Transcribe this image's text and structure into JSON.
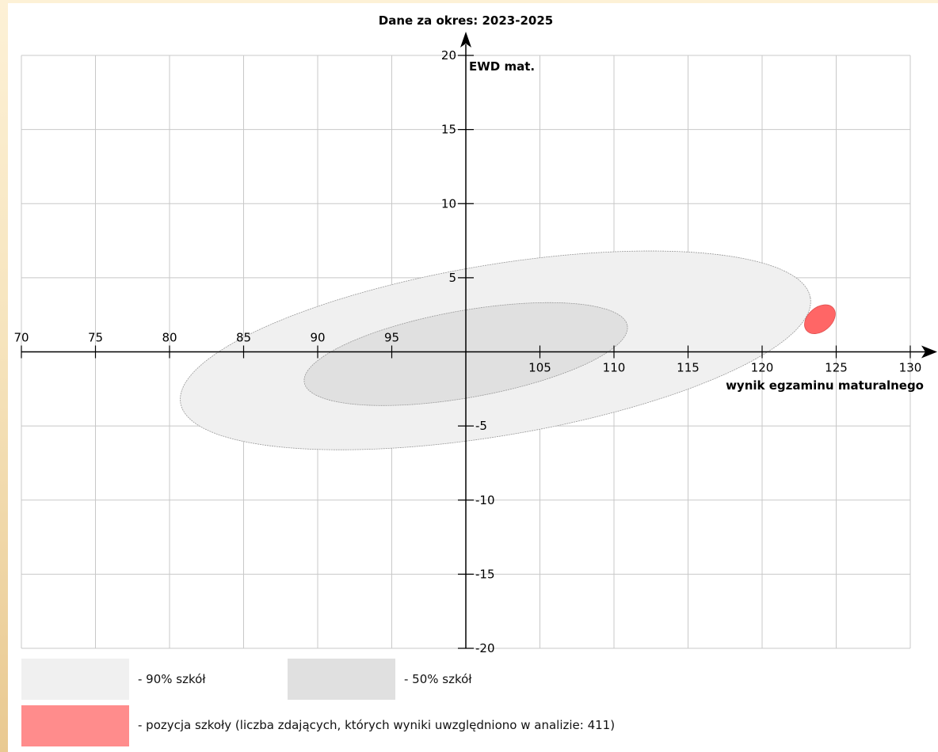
{
  "chart_data": {
    "type": "scatter",
    "title": "Dane za okres: 2023-2025",
    "xlabel": "wynik egzaminu maturalnego",
    "ylabel": "EWD mat.",
    "xlim": [
      70,
      130
    ],
    "ylim": [
      -20,
      20
    ],
    "x_ticks": [
      70,
      75,
      80,
      85,
      90,
      95,
      105,
      110,
      115,
      120,
      125,
      130
    ],
    "y_ticks": [
      20,
      15,
      10,
      5,
      -5,
      -10,
      -15,
      -20
    ],
    "grid": true,
    "regions": [
      {
        "label": "- 90% szkół",
        "center": [
          102,
          0.1
        ],
        "angle_deg": 9.5,
        "color": "#f0f0f0"
      },
      {
        "label": "- 50% szkół",
        "center": [
          100,
          -0.15
        ],
        "angle_deg": 10,
        "color": "#e0e0e0"
      }
    ],
    "school_position": {
      "label": "- pozycja szkoły (liczba zdających, których wyniki uwzględniono w analizie: 411)",
      "x": 123.9,
      "y": 2.2,
      "color": "#ff6666"
    }
  },
  "legend": {
    "items": [
      {
        "label": "- 90% szkół",
        "color": "#f0f0f0"
      },
      {
        "label": "- 50% szkół",
        "color": "#e0e0e0"
      },
      {
        "label": "- pozycja szkoły (liczba zdających, których wyniki uwzględniono w analizie: 411)",
        "color": "#ff8c8c"
      }
    ]
  }
}
